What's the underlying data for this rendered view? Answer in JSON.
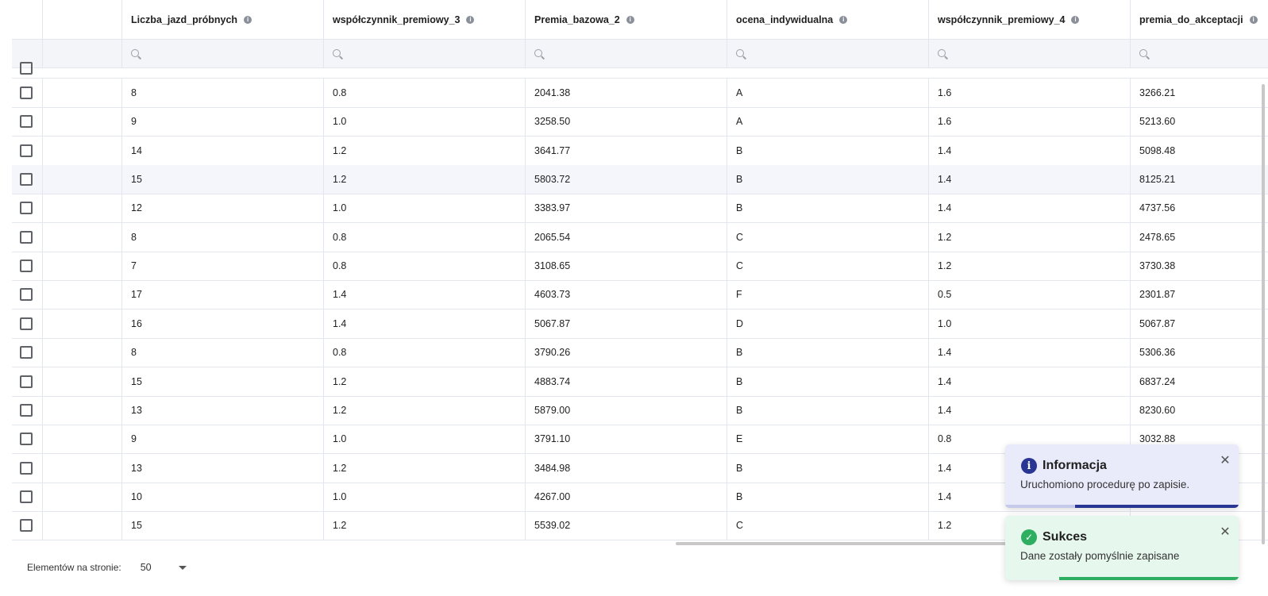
{
  "table": {
    "columns": [
      {
        "key": "liczba",
        "label": "Liczba_jazd_próbnych"
      },
      {
        "key": "wsp3",
        "label": "współczynnik_premiowy_3"
      },
      {
        "key": "premia",
        "label": "Premia_bazowa_2"
      },
      {
        "key": "ocena",
        "label": "ocena_indywidualna"
      },
      {
        "key": "wsp4",
        "label": "współczynnik_premiowy_4"
      },
      {
        "key": "akc",
        "label": "premia_do_akceptacji"
      }
    ],
    "rows": [
      [
        "8",
        "0.8",
        "2041.38",
        "A",
        "1.6",
        "3266.21"
      ],
      [
        "9",
        "1.0",
        "3258.50",
        "A",
        "1.6",
        "5213.60"
      ],
      [
        "14",
        "1.2",
        "3641.77",
        "B",
        "1.4",
        "5098.48"
      ],
      [
        "15",
        "1.2",
        "5803.72",
        "B",
        "1.4",
        "8125.21"
      ],
      [
        "12",
        "1.0",
        "3383.97",
        "B",
        "1.4",
        "4737.56"
      ],
      [
        "8",
        "0.8",
        "2065.54",
        "C",
        "1.2",
        "2478.65"
      ],
      [
        "7",
        "0.8",
        "3108.65",
        "C",
        "1.2",
        "3730.38"
      ],
      [
        "17",
        "1.4",
        "4603.73",
        "F",
        "0.5",
        "2301.87"
      ],
      [
        "16",
        "1.4",
        "5067.87",
        "D",
        "1.0",
        "5067.87"
      ],
      [
        "8",
        "0.8",
        "3790.26",
        "B",
        "1.4",
        "5306.36"
      ],
      [
        "15",
        "1.2",
        "4883.74",
        "B",
        "1.4",
        "6837.24"
      ],
      [
        "13",
        "1.2",
        "5879.00",
        "B",
        "1.4",
        "8230.60"
      ],
      [
        "9",
        "1.0",
        "3791.10",
        "E",
        "0.8",
        "3032.88"
      ],
      [
        "13",
        "1.2",
        "3484.98",
        "B",
        "1.4",
        ""
      ],
      [
        "10",
        "1.0",
        "4267.00",
        "B",
        "1.4",
        ""
      ],
      [
        "15",
        "1.2",
        "5539.02",
        "C",
        "1.2",
        ""
      ]
    ],
    "highlighted_row": 3,
    "info_icon": "info-circle-icon",
    "search_icon": "search-icon"
  },
  "footer": {
    "page_size_label": "Elementów na stronie:",
    "page_size_value": "50"
  },
  "toasts": {
    "info": {
      "title": "Informacja",
      "message": "Uruchomiono procedurę po zapisie.",
      "icon": "info-icon",
      "progress": 0.7,
      "color": "#283593"
    },
    "success": {
      "title": "Sukces",
      "message": "Dane zostały pomyślnie zapisane",
      "icon": "check-circle-icon",
      "progress": 0.77,
      "color": "#2eae60"
    }
  }
}
